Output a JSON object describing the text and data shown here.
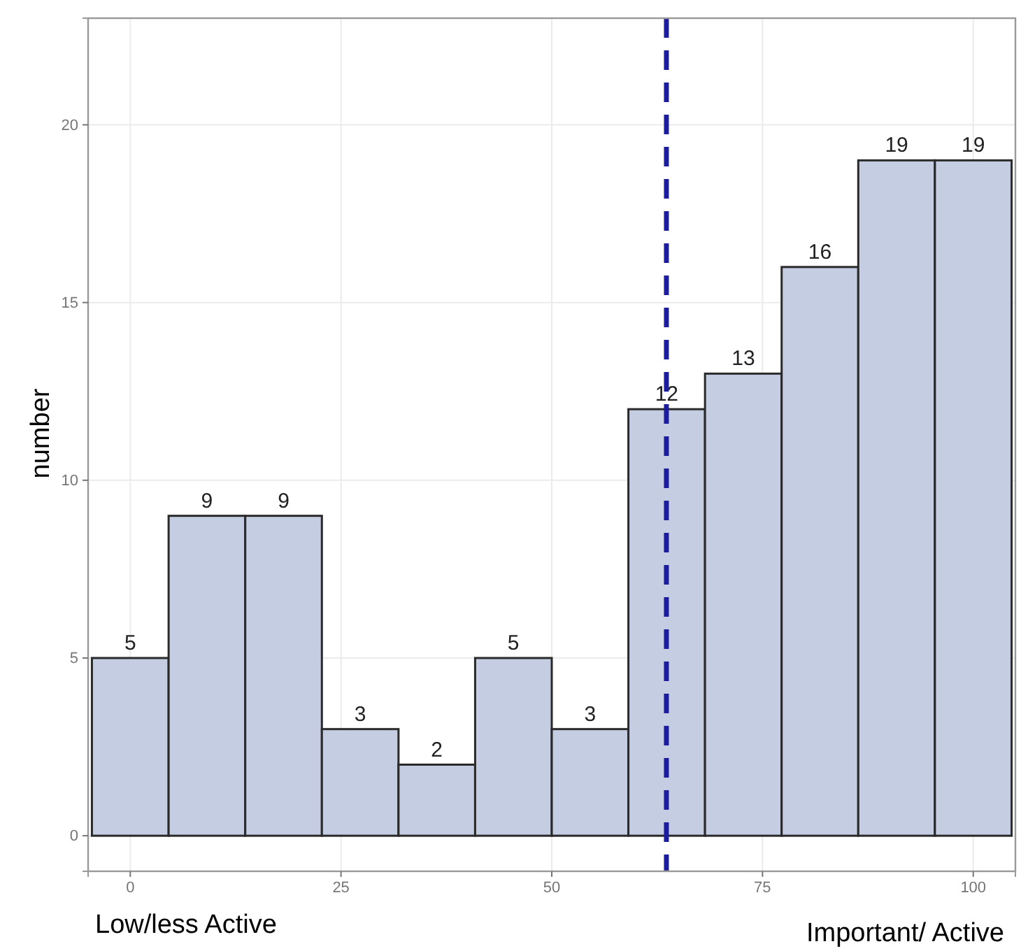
{
  "chart_data": {
    "type": "histogram",
    "ylabel": "number",
    "bins": [
      -4.55,
      4.55,
      13.64,
      22.73,
      31.82,
      40.91,
      50,
      59.09,
      68.18,
      77.27,
      86.36,
      95.45,
      104.55
    ],
    "values": [
      5,
      9,
      9,
      3,
      2,
      5,
      3,
      12,
      13,
      16,
      19,
      19
    ],
    "color": "#c5cde3",
    "data_labels": true,
    "xlim": [
      -5,
      105
    ],
    "xticks": [
      0,
      25,
      50,
      75,
      100
    ],
    "ylim": [
      -1,
      23
    ],
    "yticks": [
      0,
      5,
      10,
      15,
      20
    ],
    "grid": true,
    "ref_lines": [
      {
        "axis": "x",
        "value": 63.6,
        "color": "#1c1c9e",
        "line_style": "dashed"
      }
    ],
    "annotations": [
      "Low/less Active",
      "Important/ Active"
    ]
  }
}
